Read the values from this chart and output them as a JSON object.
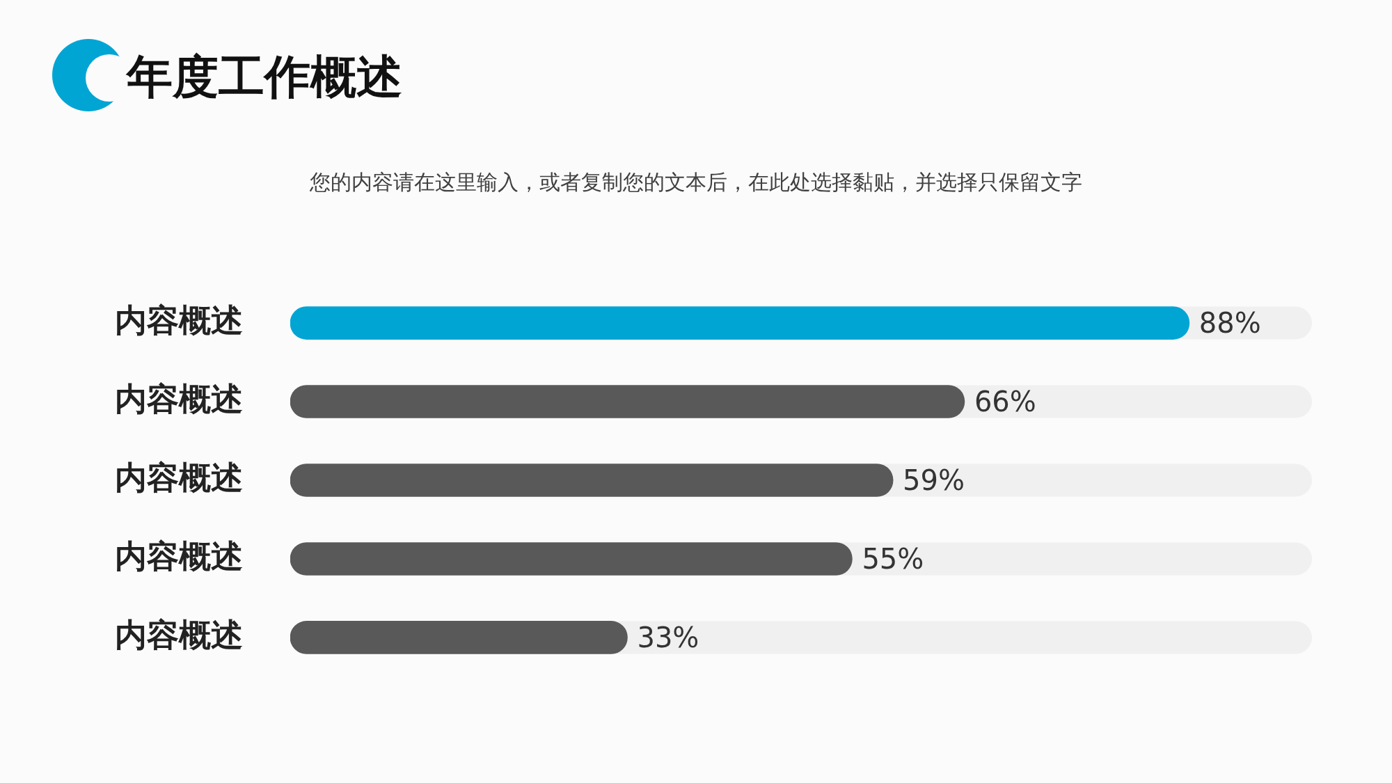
{
  "chart_data": {
    "type": "bar",
    "orientation": "horizontal",
    "title": "年度工作概述",
    "subtitle": "您的内容请在这里输入，或者复制您的文本后，在此处选择黏贴，并选择只保留文字",
    "categories": [
      "内容概述",
      "内容概述",
      "内容概述",
      "内容概述",
      "内容概述"
    ],
    "values": [
      88,
      66,
      59,
      55,
      33
    ],
    "colors": [
      "#00a5d4",
      "#595959",
      "#595959",
      "#595959",
      "#595959"
    ],
    "value_labels": [
      "88%",
      "66%",
      "59%",
      "55%",
      "33%"
    ],
    "xlim": [
      0,
      100
    ],
    "tick_labels": "y",
    "grid": false,
    "legend": false
  }
}
